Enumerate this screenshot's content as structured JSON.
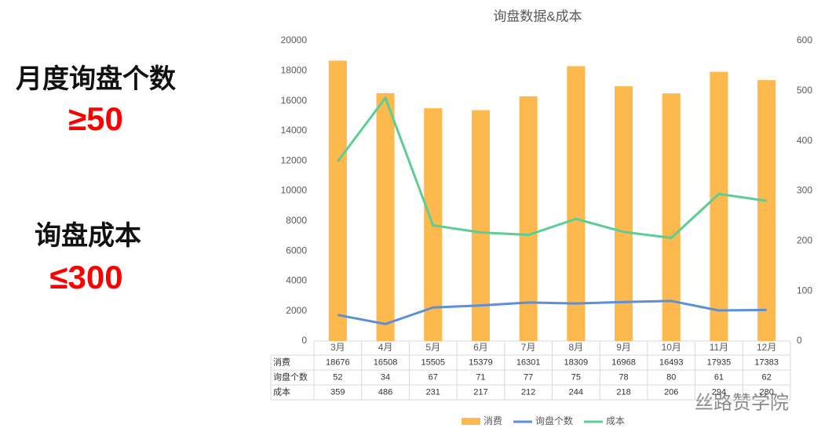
{
  "chart_data": {
    "type": "bar",
    "title": "询盘数据&成本",
    "categories": [
      "3月",
      "4月",
      "5月",
      "6月",
      "7月",
      "8月",
      "9月",
      "10月",
      "11月",
      "12月"
    ],
    "series": [
      {
        "name": "消费",
        "type": "bar",
        "color": "#fdb94e",
        "values": [
          18676,
          16508,
          15505,
          15379,
          16301,
          18309,
          16968,
          16493,
          17935,
          17383
        ]
      },
      {
        "name": "询盘个数",
        "type": "line",
        "axis": "y2",
        "color": "#5b8fd6",
        "values": [
          52,
          34,
          67,
          71,
          77,
          75,
          78,
          80,
          61,
          62
        ]
      },
      {
        "name": "成本",
        "type": "line",
        "axis": "y2",
        "color": "#5ccd94",
        "values": [
          359,
          486,
          231,
          217,
          212,
          244,
          218,
          206,
          294,
          280
        ]
      }
    ],
    "ylim": [
      0,
      20000
    ],
    "yticks": [
      0,
      2000,
      4000,
      6000,
      8000,
      10000,
      12000,
      14000,
      16000,
      18000,
      20000
    ],
    "y2lim": [
      0,
      600
    ],
    "y2ticks": [
      0,
      100,
      200,
      300,
      400,
      500,
      600
    ],
    "grid": false,
    "legend": "bottom",
    "data_table": true,
    "annotations": [
      "月度询盘个数",
      "≥50",
      "询盘成本",
      "≤300"
    ],
    "watermark": "丝路赞学院"
  }
}
